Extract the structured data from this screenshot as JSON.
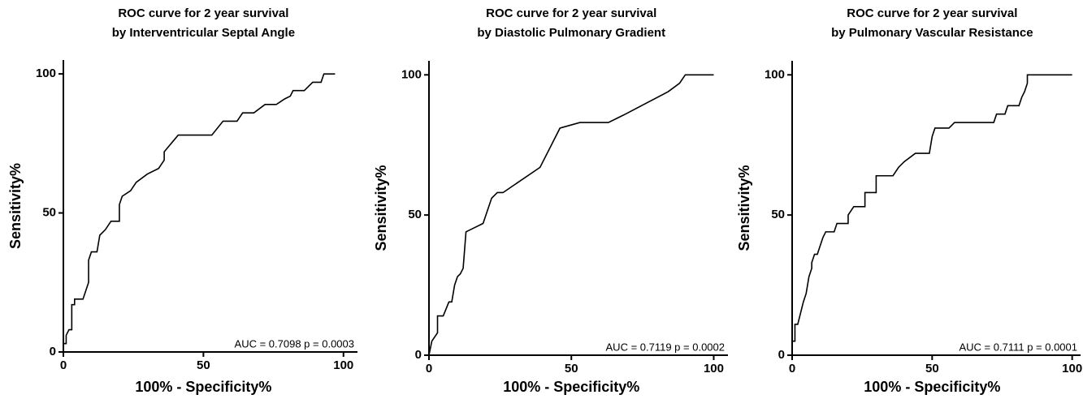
{
  "chart_data": [
    {
      "type": "line",
      "title": "ROC curve for 2 year survival",
      "subtitle": "by Interventricular Septal Angle",
      "xlabel": "100% - Specificity%",
      "ylabel": "Sensitivity%",
      "annotation": "AUC = 0.7098 p = 0.0003",
      "color": "#000000",
      "xlim": [
        0,
        105
      ],
      "ylim": [
        0,
        105
      ],
      "xticks": [
        0,
        50,
        100
      ],
      "yticks": [
        0,
        50,
        100
      ],
      "x": [
        0,
        0,
        1,
        1,
        2,
        3,
        3,
        4,
        4,
        7,
        9,
        9,
        10,
        12,
        13,
        15,
        17,
        20,
        20,
        21,
        24,
        26,
        30,
        34,
        36,
        36,
        41,
        53,
        57,
        62,
        64,
        68,
        72,
        76,
        79,
        81,
        82,
        86,
        89,
        92,
        93,
        97
      ],
      "values": [
        0,
        3,
        3,
        6,
        8,
        8,
        17,
        17,
        19,
        19,
        25,
        33,
        36,
        36,
        42,
        44,
        47,
        47,
        53,
        56,
        58,
        61,
        64,
        66,
        69,
        72,
        78,
        78,
        83,
        83,
        86,
        86,
        89,
        89,
        91,
        92,
        94,
        94,
        97,
        97,
        100,
        100
      ]
    },
    {
      "type": "line",
      "title": "ROC curve for 2 year survival",
      "subtitle": "by Diastolic Pulmonary Gradient",
      "xlabel": "100% - Specificity%",
      "ylabel": "Sensitivity%",
      "annotation": "AUC = 0.7119 p = 0.0002",
      "color": "#000000",
      "xlim": [
        0,
        105
      ],
      "ylim": [
        0,
        105
      ],
      "xticks": [
        0,
        50,
        100
      ],
      "yticks": [
        0,
        50,
        100
      ],
      "x": [
        0,
        1,
        3,
        3,
        5,
        7,
        8,
        9,
        10,
        11,
        12,
        13,
        15,
        19,
        21,
        22,
        24,
        26,
        39,
        43,
        46,
        53,
        63,
        69,
        84,
        88,
        90,
        100
      ],
      "values": [
        0,
        5,
        8,
        14,
        14,
        19,
        19,
        25,
        28,
        29,
        31,
        44,
        45,
        47,
        53,
        56,
        58,
        58,
        67,
        75,
        81,
        83,
        83,
        86,
        94,
        97,
        100,
        100
      ]
    },
    {
      "type": "line",
      "title": "ROC curve for 2 year survival",
      "subtitle": "by Pulmonary Vascular Resistance",
      "xlabel": "100% - Specificity%",
      "ylabel": "Sensitivity%",
      "annotation": "AUC = 0.7111 p = 0.0001",
      "color": "#000000",
      "xlim": [
        0,
        103
      ],
      "ylim": [
        0,
        105
      ],
      "xticks": [
        0,
        50,
        100
      ],
      "yticks": [
        0,
        50,
        100
      ],
      "x": [
        0,
        0,
        1,
        1,
        2,
        3,
        4,
        5,
        6,
        7,
        7,
        8,
        9,
        10,
        11,
        12,
        15,
        16,
        20,
        20,
        22,
        26,
        26,
        30,
        30,
        36,
        38,
        40,
        44,
        49,
        50,
        51,
        56,
        58,
        72,
        73,
        76,
        77,
        81,
        82,
        83,
        84,
        84,
        100
      ],
      "values": [
        0,
        5,
        5,
        11,
        11,
        15,
        19,
        22,
        28,
        31,
        33,
        36,
        36,
        39,
        42,
        44,
        44,
        47,
        47,
        50,
        53,
        53,
        58,
        58,
        64,
        64,
        67,
        69,
        72,
        72,
        78,
        81,
        81,
        83,
        83,
        86,
        86,
        89,
        89,
        92,
        94,
        97,
        100,
        100
      ]
    }
  ]
}
